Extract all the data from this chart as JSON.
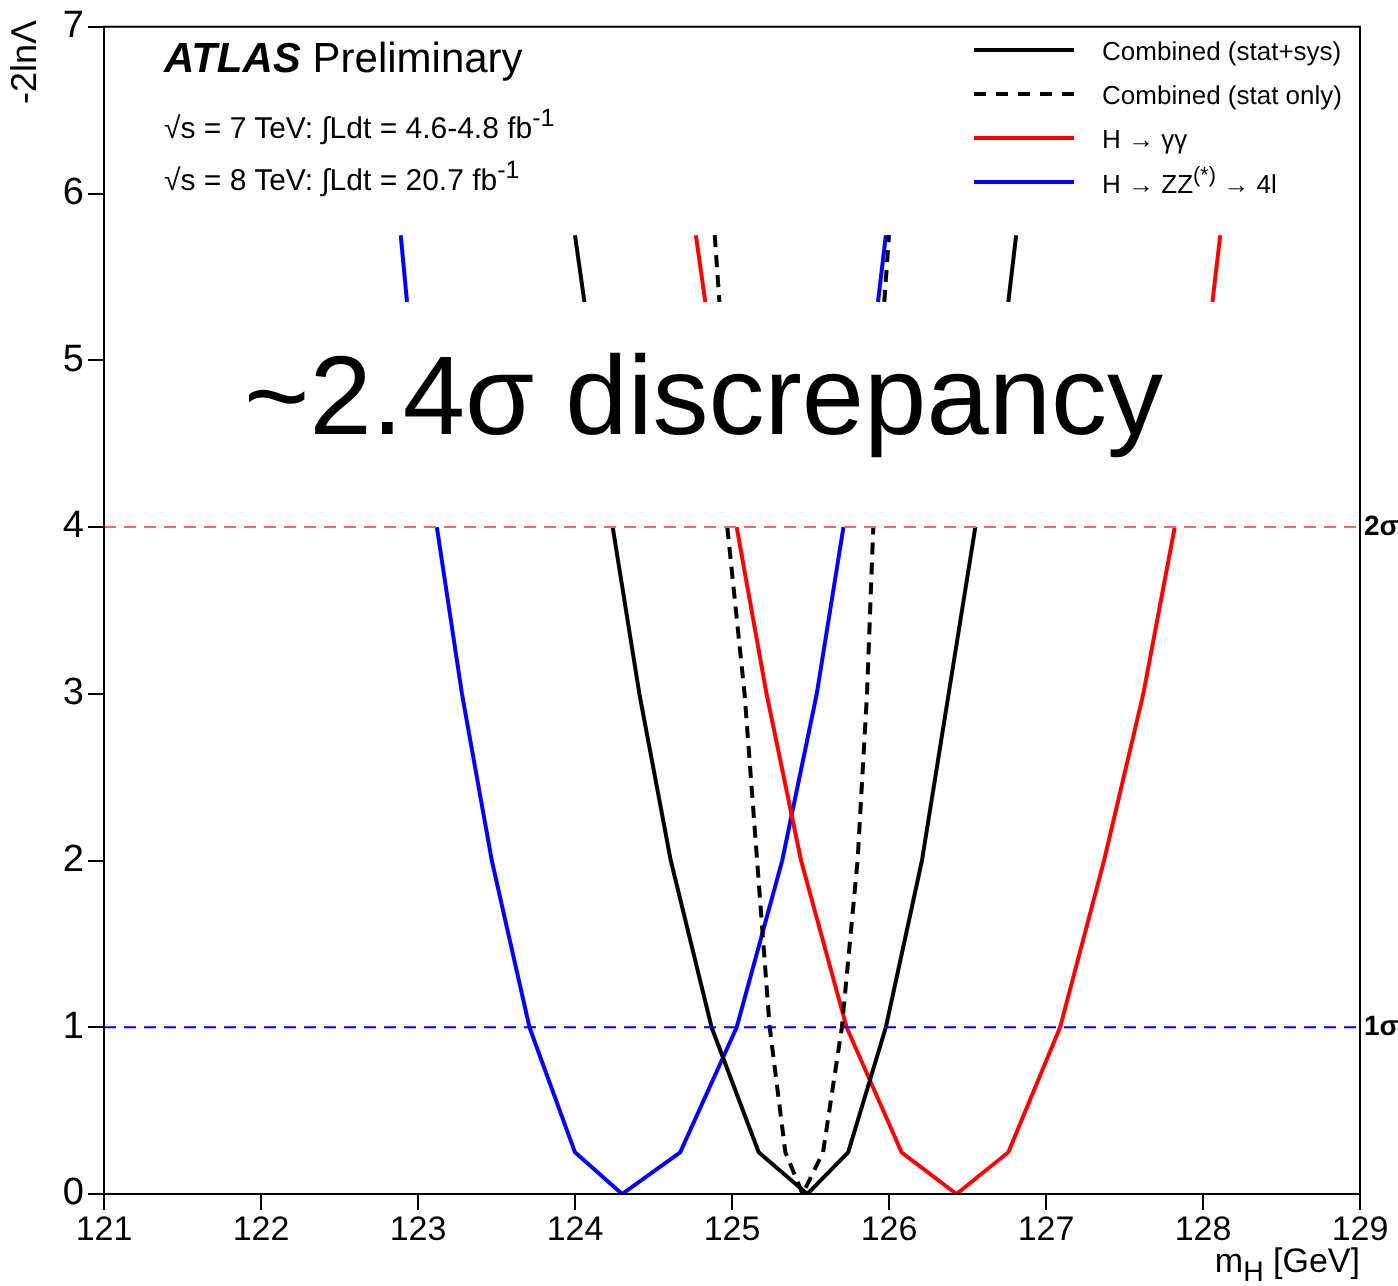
{
  "chart_data": {
    "type": "line",
    "xlabel": "m$_{H}$ [GeV]",
    "ylabel": "-2lnΛ",
    "xlim": [
      121,
      129
    ],
    "xticks": [
      121,
      122,
      123,
      124,
      125,
      126,
      127,
      128,
      129
    ],
    "ylim": [
      0,
      7
    ],
    "yticks": [
      0,
      1,
      2,
      3,
      4,
      5,
      6,
      7
    ],
    "grid": false,
    "legend": "top right",
    "marker": "none",
    "line_style": "solid",
    "series": [
      {
        "name": "Combined (stat+sys)",
        "color": "#000000",
        "x": [
          124.0,
          124.06,
          124.15,
          124.24,
          124.41,
          124.61,
          124.87,
          125.17,
          125.48,
          125.74,
          125.98,
          126.21,
          126.38,
          126.55,
          126.65,
          126.76,
          126.81
        ],
        "values": [
          5.75,
          5.35,
          null,
          4,
          3,
          2,
          1,
          0.25,
          0,
          0.25,
          1,
          2,
          3,
          4,
          null,
          5.35,
          5.75
        ]
      },
      {
        "name": "Combined (stat only)",
        "color": "#000000",
        "line_style": "dashed",
        "x": [
          124.89,
          124.92,
          124.95,
          124.97,
          125.08,
          125.16,
          125.24,
          125.34,
          125.45,
          125.58,
          125.7,
          125.8,
          125.86,
          125.9,
          125.93,
          125.97,
          126.0
        ],
        "values": [
          5.75,
          5.35,
          null,
          4,
          3,
          2,
          1,
          0.25,
          0,
          0.25,
          1,
          2,
          3,
          4,
          null,
          5.35,
          5.75
        ]
      },
      {
        "name": "H → γγ",
        "color": "#ff0000",
        "x": [
          124.77,
          124.83,
          124.9,
          125.03,
          125.22,
          125.44,
          125.73,
          126.08,
          126.43,
          126.76,
          127.09,
          127.37,
          127.62,
          127.82,
          127.95,
          128.06,
          128.11
        ],
        "values": [
          5.75,
          5.35,
          null,
          4,
          3,
          2,
          1,
          0.25,
          0,
          0.25,
          1,
          2,
          3,
          4,
          null,
          5.35,
          5.75
        ]
      },
      {
        "name": "H → ZZ$^{(*)}$ → 4l",
        "color": "#0000ff",
        "x": [
          122.89,
          122.93,
          123.0,
          123.12,
          123.28,
          123.47,
          123.71,
          124.0,
          124.3,
          124.67,
          125.03,
          125.32,
          125.54,
          125.71,
          125.85,
          125.93,
          125.98
        ],
        "values": [
          5.75,
          5.35,
          null,
          4,
          3,
          2,
          1,
          0.25,
          0,
          0.25,
          1,
          2,
          3,
          4,
          null,
          5.35,
          5.75
        ]
      }
    ],
    "ref_lines": [
      {
        "axis": "y",
        "value": 4,
        "label": "2σ",
        "color": "#ff6666",
        "line_style": "dashed"
      },
      {
        "axis": "y",
        "value": 1,
        "label": "1σ",
        "color": "#0000ff",
        "line_style": "dashed"
      }
    ],
    "annotations": [
      "ATLAS Preliminary",
      "√s = 7 TeV: ∫Ldt = 4.6-4.8 fb$^{-1}$",
      "√s = 8 TeV: ∫Ldt = 20.7 fb$^{-1}$",
      "~2.4σ discrepancy"
    ]
  }
}
